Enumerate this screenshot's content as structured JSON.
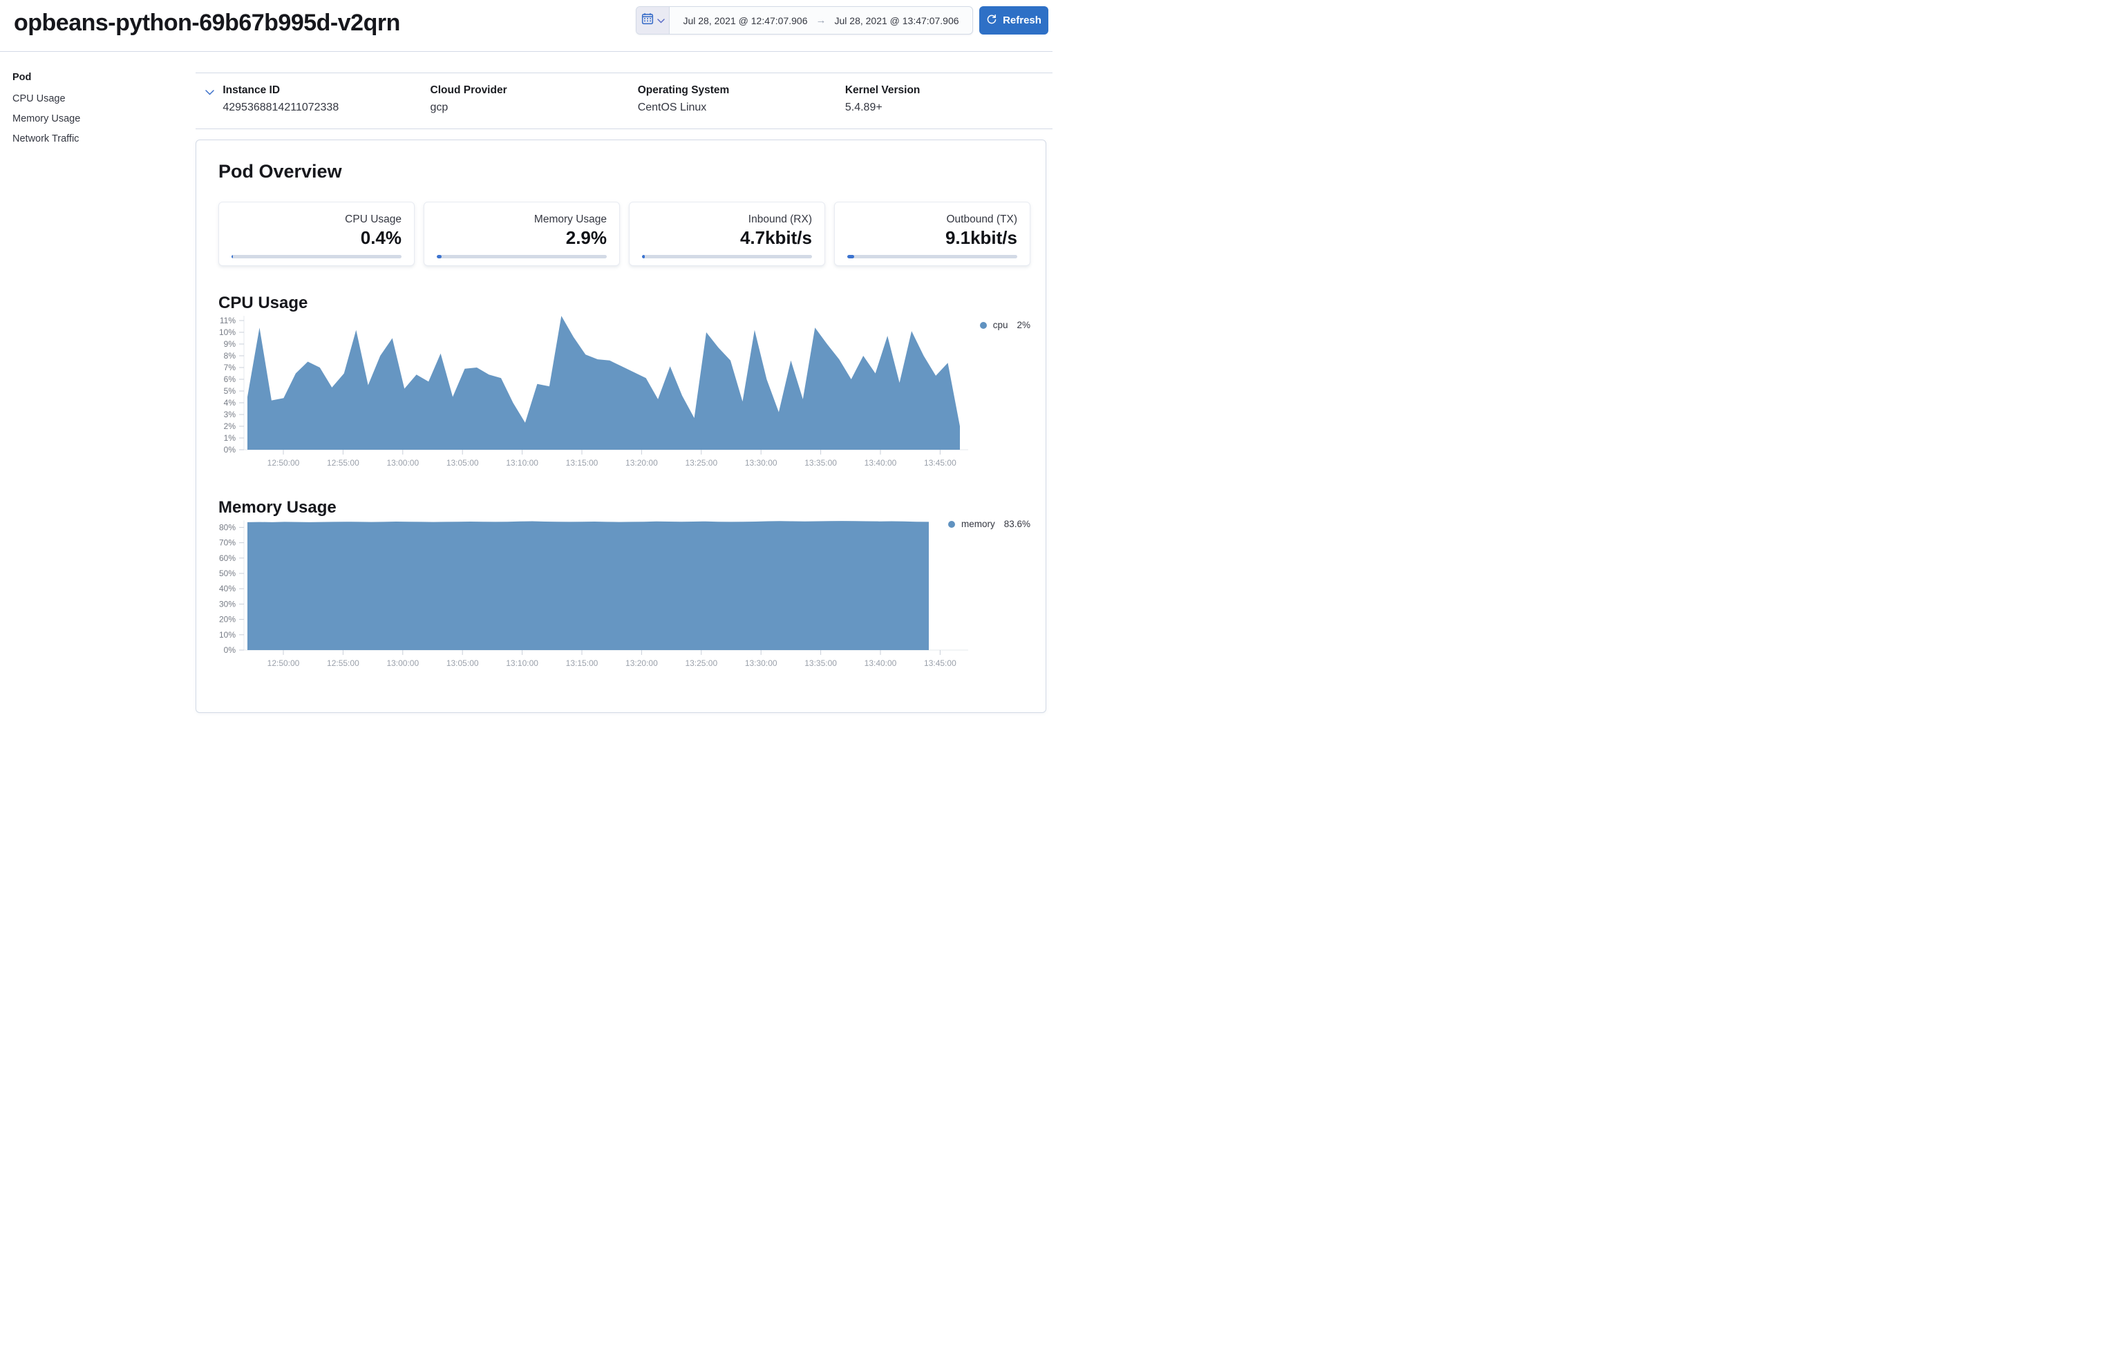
{
  "header": {
    "title": "opbeans-python-69b67b995d-v2qrn",
    "date_range": {
      "start": "Jul 28, 2021 @ 12:47:07.906",
      "end": "Jul 28, 2021 @ 13:47:07.906",
      "arrow": "→"
    },
    "refresh_label": "Refresh"
  },
  "sidebar": {
    "section": "Pod",
    "items": [
      {
        "label": "CPU Usage"
      },
      {
        "label": "Memory Usage"
      },
      {
        "label": "Network Traffic"
      }
    ]
  },
  "info": {
    "fields": [
      {
        "label": "Instance ID",
        "value": "4295368814211072338"
      },
      {
        "label": "Cloud Provider",
        "value": "gcp"
      },
      {
        "label": "Operating System",
        "value": "CentOS Linux"
      },
      {
        "label": "Kernel Version",
        "value": "5.4.89+"
      }
    ]
  },
  "overview": {
    "title": "Pod Overview",
    "metrics": [
      {
        "label": "CPU Usage",
        "value": "0.4%",
        "progress_pct": 0.8
      },
      {
        "label": "Memory Usage",
        "value": "2.9%",
        "progress_pct": 3.0
      },
      {
        "label": "Inbound (RX)",
        "value": "4.7kbit/s",
        "progress_pct": 1.6
      },
      {
        "label": "Outbound (TX)",
        "value": "9.1kbit/s",
        "progress_pct": 4.0
      }
    ]
  },
  "colors": {
    "primary": "#2e70c6",
    "chart_area": "#6092C0",
    "progress_fill": "#3b73cf",
    "border": "#d3dae6"
  },
  "chart_data": [
    {
      "type": "area",
      "title": "CPU Usage",
      "color": "#6092C0",
      "ylim": [
        0,
        11.5
      ],
      "x_start": "12:47:07",
      "x_end": "13:47:07",
      "grid": false,
      "legend_position": "top-right",
      "series": [
        {
          "name": "cpu",
          "legend_value": "2%",
          "values": [
            4.5,
            10.4,
            4.2,
            4.4,
            6.5,
            7.5,
            7.0,
            5.3,
            6.5,
            10.2,
            5.5,
            8.0,
            9.5,
            5.2,
            6.4,
            5.8,
            8.2,
            4.5,
            6.9,
            7.0,
            6.4,
            6.1,
            4.0,
            2.3,
            5.6,
            5.4,
            11.4,
            9.6,
            8.1,
            7.7,
            7.6,
            7.1,
            6.6,
            6.1,
            4.3,
            7.1,
            4.6,
            2.7,
            10.0,
            8.7,
            7.6,
            4.1,
            10.2,
            6.0,
            3.2,
            7.6,
            4.3,
            10.4,
            9.0,
            7.7,
            6.0,
            8.0,
            6.5,
            9.7,
            5.7,
            10.1,
            8.0,
            6.3,
            7.4,
            2.0
          ]
        }
      ],
      "y_ticks": [
        {
          "value": 0,
          "label": "0%"
        },
        {
          "value": 1,
          "label": "1%"
        },
        {
          "value": 2,
          "label": "2%"
        },
        {
          "value": 3,
          "label": "3%"
        },
        {
          "value": 4,
          "label": "4%"
        },
        {
          "value": 5,
          "label": "5%"
        },
        {
          "value": 6,
          "label": "6%"
        },
        {
          "value": 7,
          "label": "7%"
        },
        {
          "value": 8,
          "label": "8%"
        },
        {
          "value": 9,
          "label": "9%"
        },
        {
          "value": 10,
          "label": "10%"
        },
        {
          "value": 11,
          "label": "11%"
        }
      ],
      "x_ticks": [
        "12:50:00",
        "12:55:00",
        "13:00:00",
        "13:05:00",
        "13:10:00",
        "13:15:00",
        "13:20:00",
        "13:25:00",
        "13:30:00",
        "13:35:00",
        "13:40:00",
        "13:45:00"
      ]
    },
    {
      "type": "area",
      "title": "Memory Usage",
      "color": "#6092C0",
      "ylim": [
        0,
        85
      ],
      "x_start": "12:47:07",
      "x_end": "13:47:07",
      "grid": false,
      "legend_position": "top-right",
      "series": [
        {
          "name": "memory",
          "legend_value": "83.6%",
          "values": [
            83.4,
            83.5,
            83.4,
            83.6,
            83.5,
            83.4,
            83.5,
            83.6,
            83.7,
            83.6,
            83.5,
            83.6,
            83.8,
            83.7,
            83.6,
            83.5,
            83.6,
            83.7,
            83.8,
            83.7,
            83.6,
            83.7,
            83.9,
            84.0,
            83.8,
            83.7,
            83.6,
            83.7,
            83.8,
            83.6,
            83.5,
            83.6,
            83.7,
            83.9,
            83.8,
            83.7,
            83.8,
            83.9,
            83.7,
            83.6,
            83.7,
            83.8,
            84.0,
            84.1,
            84.0,
            83.9,
            84.0,
            84.1,
            84.2,
            84.1,
            84.0,
            83.9,
            84.0,
            83.9,
            83.7,
            83.6
          ]
        }
      ],
      "y_ticks": [
        {
          "value": 0,
          "label": "0%"
        },
        {
          "value": 10,
          "label": "10%"
        },
        {
          "value": 20,
          "label": "20%"
        },
        {
          "value": 30,
          "label": "30%"
        },
        {
          "value": 40,
          "label": "40%"
        },
        {
          "value": 50,
          "label": "50%"
        },
        {
          "value": 60,
          "label": "60%"
        },
        {
          "value": 70,
          "label": "70%"
        },
        {
          "value": 80,
          "label": "80%"
        }
      ],
      "x_ticks": [
        "12:50:00",
        "12:55:00",
        "13:00:00",
        "13:05:00",
        "13:10:00",
        "13:15:00",
        "13:20:00",
        "13:25:00",
        "13:30:00",
        "13:35:00",
        "13:40:00",
        "13:45:00"
      ]
    }
  ]
}
